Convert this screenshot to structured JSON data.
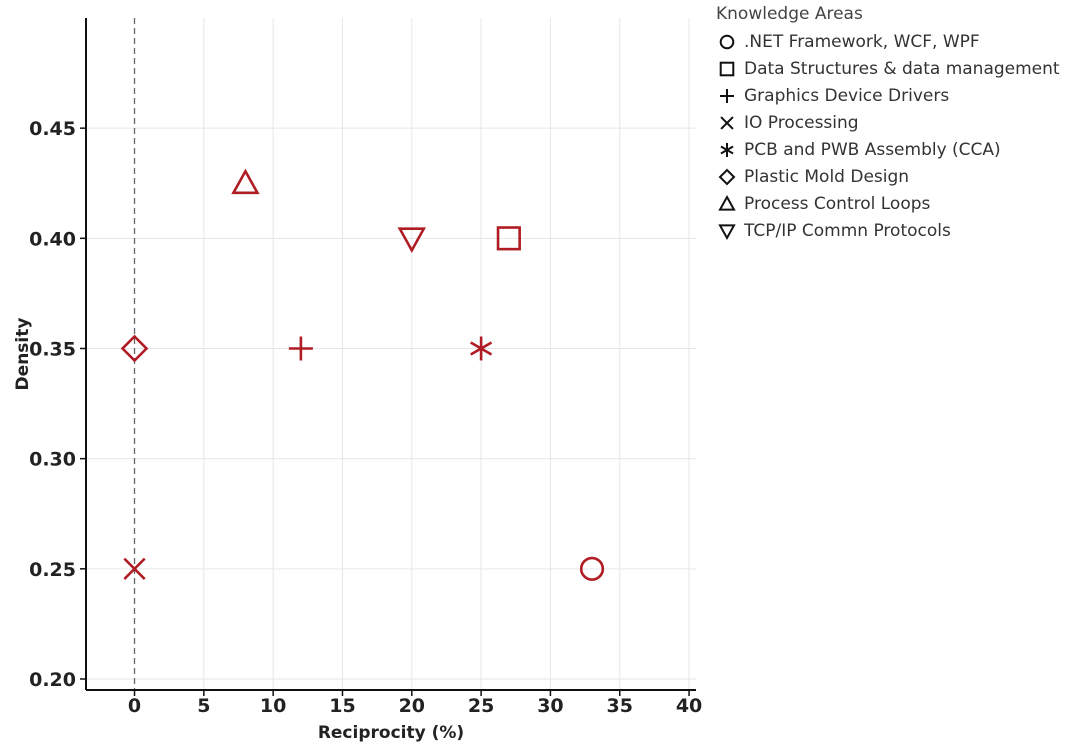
{
  "chart_data": {
    "type": "scatter",
    "title": "",
    "xlabel": "Reciprocity (%)",
    "ylabel": "Density",
    "xlim": [
      -3.5,
      40.5
    ],
    "ylim": [
      0.195,
      0.5
    ],
    "x_ticks": [
      0,
      5,
      10,
      15,
      20,
      25,
      30,
      35,
      40
    ],
    "y_ticks": [
      0.2,
      0.25,
      0.3,
      0.35,
      0.4,
      0.45
    ],
    "x_tick_labels": [
      "0",
      "5",
      "10",
      "15",
      "20",
      "25",
      "30",
      "35",
      "40"
    ],
    "y_tick_labels": [
      "0.20",
      "0.25",
      "0.30",
      "0.35",
      "0.40",
      "0.45"
    ],
    "grid": true,
    "zero_reference_line": "dashed",
    "marker_color": "#b01c24",
    "legend": {
      "title": "Knowledge Areas",
      "placement": "right"
    },
    "series": [
      {
        "name": ".NET Framework, WCF, WPF",
        "marker": "circle",
        "x": 33,
        "y": 0.25
      },
      {
        "name": "Data Structures & data management",
        "marker": "square",
        "x": 27,
        "y": 0.4
      },
      {
        "name": "Graphics Device Drivers",
        "marker": "plus",
        "x": 12,
        "y": 0.35
      },
      {
        "name": "IO Processing",
        "marker": "x",
        "x": 0,
        "y": 0.25
      },
      {
        "name": "PCB and PWB Assembly (CCA)",
        "marker": "asterisk",
        "x": 25,
        "y": 0.35
      },
      {
        "name": "Plastic Mold Design",
        "marker": "diamond",
        "x": 0,
        "y": 0.35
      },
      {
        "name": "Process Control Loops",
        "marker": "triangle-up",
        "x": 8,
        "y": 0.425
      },
      {
        "name": "TCP/IP Commn Protocols",
        "marker": "triangle-down",
        "x": 20,
        "y": 0.4
      }
    ]
  }
}
